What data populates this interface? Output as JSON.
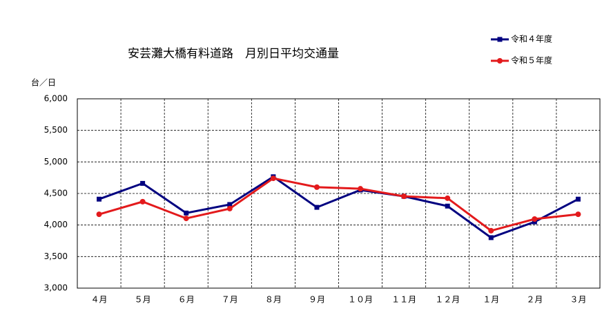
{
  "chart_data": {
    "type": "line",
    "title": "安芸灘大橋有料道路　月別日平均交通量",
    "y_label": "台／日",
    "categories": [
      "４月",
      "５月",
      "６月",
      "７月",
      "８月",
      "９月",
      "１０月",
      "１１月",
      "１２月",
      "１月",
      "２月",
      "３月"
    ],
    "series": [
      {
        "name": "令和４年度",
        "color": "#000080",
        "marker": "square",
        "values": [
          4410,
          4660,
          4190,
          4325,
          4765,
          4280,
          4555,
          4455,
          4300,
          3800,
          4050,
          4410
        ]
      },
      {
        "name": "令和５年度",
        "color": "#e31a1c",
        "marker": "circle",
        "values": [
          4170,
          4370,
          4105,
          4260,
          4740,
          4600,
          4575,
          4455,
          4425,
          3910,
          4095,
          4170
        ]
      }
    ],
    "ylim": [
      3000,
      6000
    ],
    "yticks": [
      {
        "value": 3000,
        "label": "3,000"
      },
      {
        "value": 3500,
        "label": "3,500"
      },
      {
        "value": 4000,
        "label": "4,000"
      },
      {
        "value": 4500,
        "label": "4,500"
      },
      {
        "value": 5000,
        "label": "5,000"
      },
      {
        "value": 5500,
        "label": "5,500"
      },
      {
        "value": 6000,
        "label": "6,000"
      }
    ],
    "grid": true,
    "legend": "top-right"
  }
}
